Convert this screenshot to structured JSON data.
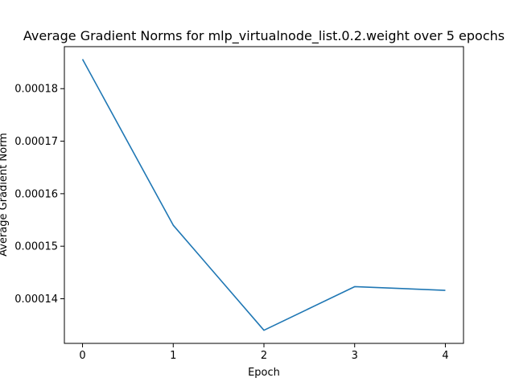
{
  "chart_data": {
    "type": "line",
    "title": "Average Gradient Norms for mlp_virtualnode_list.0.2.weight over 5 epochs",
    "xlabel": "Epoch",
    "ylabel": "Average Gradient Norm",
    "x": [
      0,
      1,
      2,
      3,
      4
    ],
    "x_ticks": [
      "0",
      "1",
      "2",
      "3",
      "4"
    ],
    "xlim": [
      -0.2,
      4.2
    ],
    "y_ticks": [
      "0.00014",
      "0.00015",
      "0.00016",
      "0.00017",
      "0.00018"
    ],
    "y_tick_values": [
      0.00014,
      0.00015,
      0.00016,
      0.00017,
      0.00018
    ],
    "ylim": [
      0.0001315,
      0.000188
    ],
    "grid": false,
    "legend": "none",
    "series": [
      {
        "values": [
          0.0001856,
          0.000154,
          0.000134,
          0.0001423,
          0.0001416
        ],
        "color": "#1f77b4"
      }
    ]
  }
}
